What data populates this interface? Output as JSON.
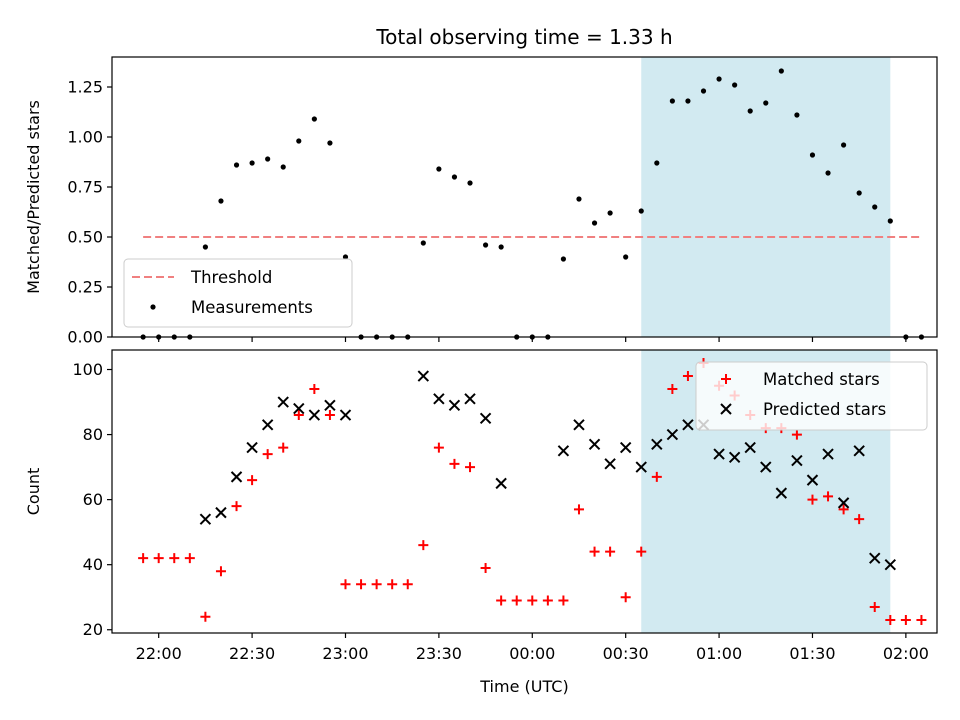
{
  "chart_data": [
    {
      "type": "scatter",
      "title": "Total observing time = 1.33 h",
      "xlabel": "",
      "ylabel": "Matched/Predicted stars",
      "xlim": [
        "21:45",
        "02:10"
      ],
      "ylim": [
        0,
        1.4
      ],
      "yticks": [
        "0.00",
        "0.25",
        "0.50",
        "0.75",
        "1.00",
        "1.25"
      ],
      "shaded_range": [
        "00:35",
        "01:55"
      ],
      "legend_position": "lower-left",
      "threshold": {
        "name": "Threshold",
        "value": 0.5,
        "x_range": [
          "21:55",
          "02:05"
        ],
        "color": "#f08080"
      },
      "series": [
        {
          "name": "Measurements",
          "color": "#000000",
          "points": [
            [
              "21:55",
              0
            ],
            [
              "22:00",
              0
            ],
            [
              "22:05",
              0
            ],
            [
              "22:10",
              0
            ],
            [
              "22:15",
              0.45
            ],
            [
              "22:20",
              0.68
            ],
            [
              "22:25",
              0.86
            ],
            [
              "22:30",
              0.87
            ],
            [
              "22:35",
              0.89
            ],
            [
              "22:40",
              0.85
            ],
            [
              "22:45",
              0.98
            ],
            [
              "22:50",
              1.09
            ],
            [
              "22:55",
              0.97
            ],
            [
              "23:00",
              0.4
            ],
            [
              "23:05",
              0
            ],
            [
              "23:10",
              0
            ],
            [
              "23:15",
              0
            ],
            [
              "23:20",
              0
            ],
            [
              "23:25",
              0.47
            ],
            [
              "23:30",
              0.84
            ],
            [
              "23:35",
              0.8
            ],
            [
              "23:40",
              0.77
            ],
            [
              "23:45",
              0.46
            ],
            [
              "23:50",
              0.45
            ],
            [
              "23:55",
              0
            ],
            [
              "00:00",
              0
            ],
            [
              "00:05",
              0
            ],
            [
              "00:10",
              0.39
            ],
            [
              "00:15",
              0.69
            ],
            [
              "00:20",
              0.57
            ],
            [
              "00:25",
              0.62
            ],
            [
              "00:30",
              0.4
            ],
            [
              "00:35",
              0.63
            ],
            [
              "00:40",
              0.87
            ],
            [
              "00:45",
              1.18
            ],
            [
              "00:50",
              1.18
            ],
            [
              "00:55",
              1.23
            ],
            [
              "01:00",
              1.29
            ],
            [
              "01:05",
              1.26
            ],
            [
              "01:10",
              1.13
            ],
            [
              "01:15",
              1.17
            ],
            [
              "01:20",
              1.33
            ],
            [
              "01:25",
              1.11
            ],
            [
              "01:30",
              0.91
            ],
            [
              "01:35",
              0.82
            ],
            [
              "01:40",
              0.96
            ],
            [
              "01:45",
              0.72
            ],
            [
              "01:50",
              0.65
            ],
            [
              "01:55",
              0.58
            ],
            [
              "02:00",
              0
            ],
            [
              "02:05",
              0
            ]
          ]
        }
      ]
    },
    {
      "type": "scatter",
      "title": "",
      "xlabel": "Time (UTC)",
      "ylabel": "Count",
      "xlim": [
        "21:45",
        "02:10"
      ],
      "ylim": [
        19,
        106
      ],
      "yticks": [
        "20",
        "40",
        "60",
        "80",
        "100"
      ],
      "xticks": [
        "22:00",
        "22:30",
        "23:00",
        "23:30",
        "00:00",
        "00:30",
        "01:00",
        "01:30",
        "02:00"
      ],
      "shaded_range": [
        "00:35",
        "01:55"
      ],
      "legend_position": "upper-right",
      "series": [
        {
          "name": "Matched stars",
          "color": "#ff0000",
          "marker": "plus",
          "points": [
            [
              "21:55",
              42
            ],
            [
              "22:00",
              42
            ],
            [
              "22:05",
              42
            ],
            [
              "22:10",
              42
            ],
            [
              "22:15",
              24
            ],
            [
              "22:20",
              38
            ],
            [
              "22:25",
              58
            ],
            [
              "22:30",
              66
            ],
            [
              "22:35",
              74
            ],
            [
              "22:40",
              76
            ],
            [
              "22:45",
              86
            ],
            [
              "22:50",
              94
            ],
            [
              "22:55",
              86
            ],
            [
              "23:00",
              34
            ],
            [
              "23:05",
              34
            ],
            [
              "23:10",
              34
            ],
            [
              "23:15",
              34
            ],
            [
              "23:20",
              34
            ],
            [
              "23:25",
              46
            ],
            [
              "23:30",
              76
            ],
            [
              "23:35",
              71
            ],
            [
              "23:40",
              70
            ],
            [
              "23:45",
              39
            ],
            [
              "23:50",
              29
            ],
            [
              "23:55",
              29
            ],
            [
              "00:00",
              29
            ],
            [
              "00:05",
              29
            ],
            [
              "00:10",
              29
            ],
            [
              "00:15",
              57
            ],
            [
              "00:20",
              44
            ],
            [
              "00:25",
              44
            ],
            [
              "00:30",
              30
            ],
            [
              "00:35",
              44
            ],
            [
              "00:40",
              67
            ],
            [
              "00:45",
              94
            ],
            [
              "00:50",
              98
            ],
            [
              "00:55",
              102
            ],
            [
              "01:00",
              95
            ],
            [
              "01:05",
              92
            ],
            [
              "01:10",
              86
            ],
            [
              "01:15",
              82
            ],
            [
              "01:20",
              82
            ],
            [
              "01:25",
              80
            ],
            [
              "01:30",
              60
            ],
            [
              "01:35",
              61
            ],
            [
              "01:40",
              57
            ],
            [
              "01:45",
              54
            ],
            [
              "01:50",
              27
            ],
            [
              "01:55",
              23
            ],
            [
              "02:00",
              23
            ],
            [
              "02:05",
              23
            ]
          ]
        },
        {
          "name": "Predicted stars",
          "color": "#000000",
          "marker": "x",
          "points": [
            [
              "22:15",
              54
            ],
            [
              "22:20",
              56
            ],
            [
              "22:25",
              67
            ],
            [
              "22:30",
              76
            ],
            [
              "22:35",
              83
            ],
            [
              "22:40",
              90
            ],
            [
              "22:45",
              88
            ],
            [
              "22:50",
              86
            ],
            [
              "22:55",
              89
            ],
            [
              "23:00",
              86
            ],
            [
              "23:25",
              98
            ],
            [
              "23:30",
              91
            ],
            [
              "23:35",
              89
            ],
            [
              "23:40",
              91
            ],
            [
              "23:45",
              85
            ],
            [
              "23:50",
              65
            ],
            [
              "00:10",
              75
            ],
            [
              "00:15",
              83
            ],
            [
              "00:20",
              77
            ],
            [
              "00:25",
              71
            ],
            [
              "00:30",
              76
            ],
            [
              "00:35",
              70
            ],
            [
              "00:40",
              77
            ],
            [
              "00:45",
              80
            ],
            [
              "00:50",
              83
            ],
            [
              "00:55",
              83
            ],
            [
              "01:00",
              74
            ],
            [
              "01:05",
              73
            ],
            [
              "01:10",
              76
            ],
            [
              "01:15",
              70
            ],
            [
              "01:20",
              62
            ],
            [
              "01:25",
              72
            ],
            [
              "01:30",
              66
            ],
            [
              "01:35",
              74
            ],
            [
              "01:40",
              59
            ],
            [
              "01:45",
              75
            ],
            [
              "01:50",
              42
            ],
            [
              "01:55",
              40
            ]
          ]
        }
      ]
    }
  ],
  "colors": {
    "shade": "#add8e6",
    "axis": "#000000"
  }
}
